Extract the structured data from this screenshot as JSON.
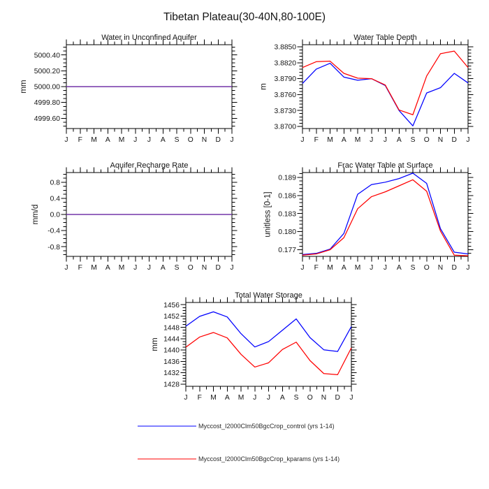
{
  "title": "Tibetan Plateau(30-40N,80-100E)",
  "colors": {
    "control": "#0000ff",
    "kparams": "#ff0000",
    "overlap": "#7335a9",
    "axis": "#000000",
    "text": "#141414"
  },
  "legend": [
    {
      "label": "Myccost_I2000Clm50BgcCrop_control (yrs 1-14)",
      "color": "#0000ff"
    },
    {
      "label": "Myccost_I2000Clm50BgcCrop_kparams (yrs 1-14)",
      "color": "#ff0000"
    }
  ],
  "chart_data": [
    {
      "id": "water-in-unconfined-aquifer",
      "type": "line",
      "title": "Water in Unconfined Aquifer",
      "ylabel": "mm",
      "xlabel": "",
      "categories": [
        "J",
        "F",
        "M",
        "A",
        "M",
        "J",
        "J",
        "A",
        "S",
        "O",
        "N",
        "D",
        "J"
      ],
      "ylim": [
        4999.47,
        5000.53
      ],
      "yticks": [
        4999.6,
        4999.8,
        5000.0,
        5000.2,
        5000.4
      ],
      "ytick_labels": [
        "4999.60",
        "4999.80",
        "5000.00",
        "5000.20",
        "5000.40"
      ],
      "yminor": 0.05,
      "overlap": true,
      "series": [
        {
          "name": "control",
          "color": "#0000ff",
          "values": [
            5000.0,
            5000.0,
            5000.0,
            5000.0,
            5000.0,
            5000.0,
            5000.0,
            5000.0,
            5000.0,
            5000.0,
            5000.0,
            5000.0,
            5000.0
          ]
        },
        {
          "name": "kparams",
          "color": "#ff0000",
          "values": [
            5000.0,
            5000.0,
            5000.0,
            5000.0,
            5000.0,
            5000.0,
            5000.0,
            5000.0,
            5000.0,
            5000.0,
            5000.0,
            5000.0,
            5000.0
          ]
        }
      ]
    },
    {
      "id": "water-table-depth",
      "type": "line",
      "title": "Water Table Depth",
      "ylabel": "m",
      "xlabel": "",
      "categories": [
        "J",
        "F",
        "M",
        "A",
        "M",
        "J",
        "J",
        "A",
        "S",
        "O",
        "N",
        "D",
        "J"
      ],
      "ylim": [
        3.8696,
        3.8854
      ],
      "yticks": [
        3.87,
        3.873,
        3.876,
        3.879,
        3.882,
        3.885
      ],
      "ytick_labels": [
        "3.8700",
        "3.8730",
        "3.8760",
        "3.8790",
        "3.8820",
        "3.8850"
      ],
      "yminor": 0.0006,
      "overlap": false,
      "series": [
        {
          "name": "control",
          "color": "#0000ff",
          "values": [
            3.8781,
            3.8808,
            3.8819,
            3.8793,
            3.8787,
            3.879,
            3.8777,
            3.873,
            3.8701,
            3.8763,
            3.8773,
            3.88,
            3.8782
          ]
        },
        {
          "name": "kparams",
          "color": "#ff0000",
          "values": [
            3.8811,
            3.8822,
            3.8823,
            3.88,
            3.8791,
            3.879,
            3.8778,
            3.8731,
            3.8722,
            3.8795,
            3.8837,
            3.8842,
            3.8811
          ]
        }
      ]
    },
    {
      "id": "aquifer-recharge-rate",
      "type": "line",
      "title": "Aquifer Recharge Rate",
      "ylabel": "mm/d",
      "xlabel": "",
      "categories": [
        "J",
        "F",
        "M",
        "A",
        "M",
        "J",
        "J",
        "A",
        "S",
        "O",
        "N",
        "D",
        "J"
      ],
      "ylim": [
        -1.04,
        1.04
      ],
      "yticks": [
        -0.8,
        -0.4,
        0.0,
        0.4,
        0.8
      ],
      "ytick_labels": [
        "-0.8",
        "-0.4",
        "0.0",
        "0.4",
        "0.8"
      ],
      "yminor": 0.1,
      "overlap": true,
      "series": [
        {
          "name": "control",
          "color": "#0000ff",
          "values": [
            0.0,
            0.0,
            0.0,
            0.0,
            0.0,
            0.0,
            0.0,
            0.0,
            0.0,
            0.0,
            0.0,
            0.0,
            0.0
          ]
        },
        {
          "name": "kparams",
          "color": "#ff0000",
          "values": [
            0.0,
            0.0,
            0.0,
            0.0,
            0.0,
            0.0,
            0.0,
            0.0,
            0.0,
            0.0,
            0.0,
            0.0,
            0.0
          ]
        }
      ]
    },
    {
      "id": "frac-water-table-at-surface",
      "type": "line",
      "title": "Frac Water Table at Surface",
      "ylabel": "unitless [0-1]",
      "xlabel": "",
      "categories": [
        "J",
        "F",
        "M",
        "A",
        "M",
        "J",
        "J",
        "A",
        "S",
        "O",
        "N",
        "D",
        "J"
      ],
      "ylim": [
        0.1759,
        0.1898
      ],
      "yticks": [
        0.177,
        0.18,
        0.183,
        0.186,
        0.189
      ],
      "ytick_labels": [
        "0.177",
        "0.180",
        "0.183",
        "0.186",
        "0.189"
      ],
      "yminor": 0.0006,
      "overlap": false,
      "series": [
        {
          "name": "control",
          "color": "#0000ff",
          "values": [
            0.1762,
            0.1764,
            0.1771,
            0.1797,
            0.1862,
            0.1878,
            0.1882,
            0.1888,
            0.1897,
            0.188,
            0.1805,
            0.1766,
            0.1763
          ]
        },
        {
          "name": "kparams",
          "color": "#ff0000",
          "values": [
            0.1761,
            0.1763,
            0.177,
            0.179,
            0.1838,
            0.1858,
            0.1866,
            0.1876,
            0.1886,
            0.1867,
            0.1801,
            0.1761,
            0.176
          ]
        }
      ]
    },
    {
      "id": "total-water-storage",
      "type": "line",
      "title": "Total Water Storage",
      "ylabel": "mm",
      "xlabel": "",
      "categories": [
        "J",
        "F",
        "M",
        "A",
        "M",
        "J",
        "J",
        "A",
        "S",
        "O",
        "N",
        "D",
        "J"
      ],
      "ylim": [
        1427.2,
        1456.8
      ],
      "yticks": [
        1428,
        1432,
        1436,
        1440,
        1444,
        1448,
        1452,
        1456
      ],
      "ytick_labels": [
        "1428",
        "1432",
        "1436",
        "1440",
        "1444",
        "1448",
        "1452",
        "1456"
      ],
      "yminor": 1,
      "overlap": false,
      "series": [
        {
          "name": "control",
          "color": "#0000ff",
          "values": [
            1448.4,
            1451.9,
            1453.5,
            1451.7,
            1445.8,
            1441.1,
            1443.0,
            1447.0,
            1451.0,
            1444.4,
            1440.1,
            1439.5,
            1448.3
          ]
        },
        {
          "name": "kparams",
          "color": "#ff0000",
          "values": [
            1441.0,
            1444.6,
            1446.2,
            1444.3,
            1438.5,
            1434.0,
            1435.5,
            1440.2,
            1442.8,
            1436.3,
            1431.7,
            1431.3,
            1440.8
          ]
        }
      ]
    }
  ]
}
